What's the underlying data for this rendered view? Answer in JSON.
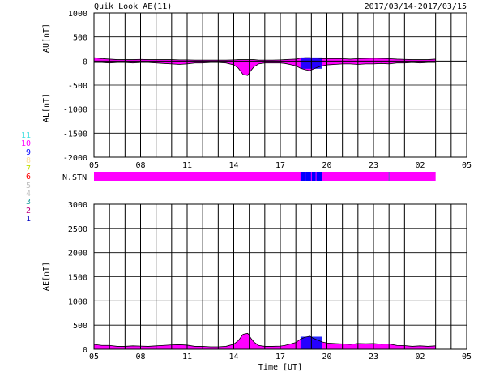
{
  "header": {
    "title": "Quik Look AE(11)",
    "date_range": "2017/03/14-2017/03/15"
  },
  "legend": {
    "entries": [
      {
        "label": "11",
        "color": "#40e0e0"
      },
      {
        "label": "10",
        "color": "#ff00ff"
      },
      {
        "label": "9",
        "color": "#0000ff"
      },
      {
        "label": "8",
        "color": "#ffe0a0"
      },
      {
        "label": "7",
        "color": "#c0e000"
      },
      {
        "label": "6",
        "color": "#ff0000"
      },
      {
        "label": "5",
        "color": "#c0c0c0"
      },
      {
        "label": "4",
        "color": "#c0c0c0"
      },
      {
        "label": "3",
        "color": "#20a0a0"
      },
      {
        "label": "2",
        "color": "#c00080"
      },
      {
        "label": "1",
        "color": "#0000c0"
      }
    ]
  },
  "colors": {
    "fill": "#ff00ff",
    "station_alt": "#0000ff",
    "line": "#000000"
  },
  "chart_data": [
    {
      "type": "area",
      "ylabel_top": "AU[nT]",
      "ylabel_bottom": "AL[nT]",
      "ylim": [
        -2000,
        1000
      ],
      "yticks": [
        "1000",
        "500",
        "0",
        "-500",
        "-1000",
        "-1500",
        "-2000"
      ],
      "xticks": [
        "05",
        "08",
        "11",
        "14",
        "17",
        "20",
        "23",
        "02",
        "05"
      ],
      "xlim": [
        5,
        29
      ],
      "grid": true,
      "blue_interval": [
        18.3,
        19.7
      ],
      "series": [
        {
          "x": [
            5.0,
            5.5,
            6.0,
            6.5,
            7.0,
            7.5,
            8.0,
            8.5,
            9.0,
            9.5,
            10.0,
            10.5,
            11.0,
            11.5,
            12.0,
            12.5,
            13.0,
            13.5,
            14.0,
            14.3,
            14.6,
            14.9,
            15.1,
            15.3,
            15.6,
            16.0,
            16.5,
            17.0,
            17.3,
            17.6,
            18.0,
            18.3,
            18.6,
            18.9,
            19.1,
            19.4,
            19.7,
            20.0,
            20.5,
            21.0,
            21.5,
            22.0,
            22.5,
            23.0,
            23.5,
            24.0,
            24.5,
            25.0,
            25.5,
            26.0,
            26.5,
            27.0
          ],
          "au": [
            70,
            50,
            40,
            30,
            30,
            30,
            35,
            30,
            30,
            30,
            30,
            25,
            25,
            20,
            20,
            20,
            20,
            20,
            25,
            30,
            30,
            30,
            30,
            30,
            20,
            20,
            20,
            25,
            30,
            35,
            40,
            60,
            70,
            70,
            60,
            60,
            50,
            50,
            50,
            50,
            40,
            50,
            55,
            60,
            55,
            50,
            40,
            35,
            30,
            30,
            30,
            40
          ],
          "al": [
            -30,
            -30,
            -40,
            -30,
            -30,
            -40,
            -30,
            -30,
            -40,
            -50,
            -60,
            -70,
            -60,
            -40,
            -40,
            -30,
            -30,
            -40,
            -80,
            -150,
            -280,
            -300,
            -200,
            -120,
            -60,
            -40,
            -40,
            -40,
            -50,
            -70,
            -100,
            -150,
            -180,
            -200,
            -170,
            -130,
            -100,
            -80,
            -70,
            -60,
            -60,
            -70,
            -60,
            -60,
            -50,
            -60,
            -40,
            -40,
            -30,
            -40,
            -30,
            -30
          ]
        }
      ]
    },
    {
      "type": "area",
      "ylabel": "AE[nT]",
      "xlabel": "Time [UT]",
      "ylim": [
        0,
        3000
      ],
      "yticks": [
        "3000",
        "2500",
        "2000",
        "1500",
        "1000",
        "500",
        "0"
      ],
      "xticks": [
        "05",
        "08",
        "11",
        "14",
        "17",
        "20",
        "23",
        "02",
        "05"
      ],
      "xlim": [
        5,
        29
      ],
      "grid": true,
      "blue_interval": [
        18.3,
        19.7
      ],
      "series": [
        {
          "x": [
            5.0,
            5.5,
            6.0,
            6.5,
            7.0,
            7.5,
            8.0,
            8.5,
            9.0,
            9.5,
            10.0,
            10.5,
            11.0,
            11.5,
            12.0,
            12.5,
            13.0,
            13.5,
            14.0,
            14.3,
            14.6,
            14.9,
            15.1,
            15.3,
            15.6,
            16.0,
            16.5,
            17.0,
            17.3,
            17.6,
            18.0,
            18.3,
            18.6,
            18.9,
            19.1,
            19.4,
            19.7,
            20.0,
            20.5,
            21.0,
            21.5,
            22.0,
            22.5,
            23.0,
            23.5,
            24.0,
            24.5,
            25.0,
            25.5,
            26.0,
            26.5,
            27.0
          ],
          "ae": [
            100,
            80,
            80,
            60,
            60,
            70,
            65,
            60,
            70,
            80,
            90,
            95,
            85,
            60,
            60,
            50,
            50,
            60,
            105,
            180,
            310,
            330,
            230,
            150,
            80,
            60,
            60,
            65,
            80,
            105,
            140,
            210,
            250,
            270,
            230,
            190,
            150,
            130,
            120,
            110,
            100,
            120,
            115,
            120,
            105,
            110,
            80,
            75,
            60,
            70,
            60,
            70
          ]
        }
      ]
    }
  ],
  "station_bar": {
    "label": "N.STN"
  }
}
